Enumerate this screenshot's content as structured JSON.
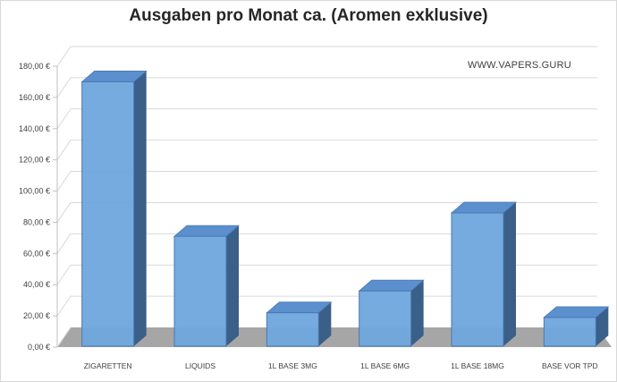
{
  "chart_data": {
    "type": "bar",
    "title": "Ausgaben pro Monat ca. (Aromen exklusive)",
    "categories": [
      "ZIGARETTEN",
      "LIQUIDS",
      "1L BASE 3MG",
      "1L BASE 6MG",
      "1L BASE 18MG",
      "BASE VOR TPD"
    ],
    "values": [
      170,
      71,
      22,
      36,
      86,
      19
    ],
    "ylim": [
      0,
      180
    ],
    "yticks": [
      0,
      20,
      40,
      60,
      80,
      100,
      120,
      140,
      160,
      180
    ],
    "ytick_labels": [
      "0,00 €",
      "20,00 €",
      "40,00 €",
      "60,00 €",
      "80,00 €",
      "100,00 €",
      "120,00 €",
      "140,00 €",
      "160,00 €",
      "180,00 €"
    ],
    "xlabel": "",
    "ylabel": "",
    "grid": true,
    "style": "3d-column",
    "annotation": "WWW.VAPERS.GURU",
    "colors": {
      "bar_front": "#6fa6de",
      "bar_top": "#5b8fcd",
      "bar_side": "#3a5f88",
      "floor": "#a6a6a6",
      "grid": "#d9d9d9"
    }
  }
}
